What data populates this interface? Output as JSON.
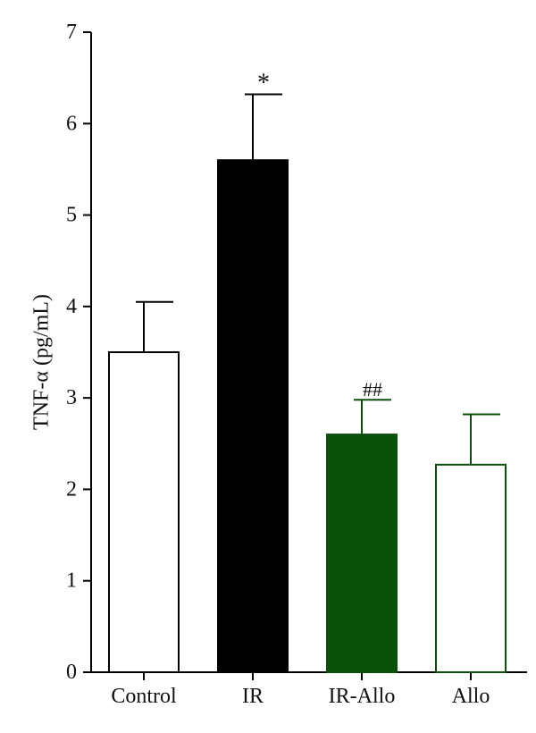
{
  "chart_data": {
    "type": "bar",
    "ylabel": "TNF-α (pg/mL)",
    "xlabel": "",
    "ylim": [
      0,
      7
    ],
    "yticks": [
      "0",
      "1",
      "2",
      "3",
      "4",
      "5",
      "6",
      "7"
    ],
    "categories": [
      "Control",
      "IR",
      "IR-Allo",
      "Allo"
    ],
    "values": [
      3.5,
      5.6,
      2.6,
      2.27
    ],
    "errors": [
      0.55,
      0.72,
      0.38,
      0.55
    ],
    "annotations": [
      "",
      "*",
      "##",
      ""
    ],
    "bar_fill": [
      "#ffffff",
      "#000000",
      "#0a4f0a",
      "#ffffff"
    ],
    "bar_stroke": [
      "#000000",
      "#000000",
      "#0a4f0a",
      "#0a4f0a"
    ],
    "grid": false,
    "legend": "none"
  }
}
